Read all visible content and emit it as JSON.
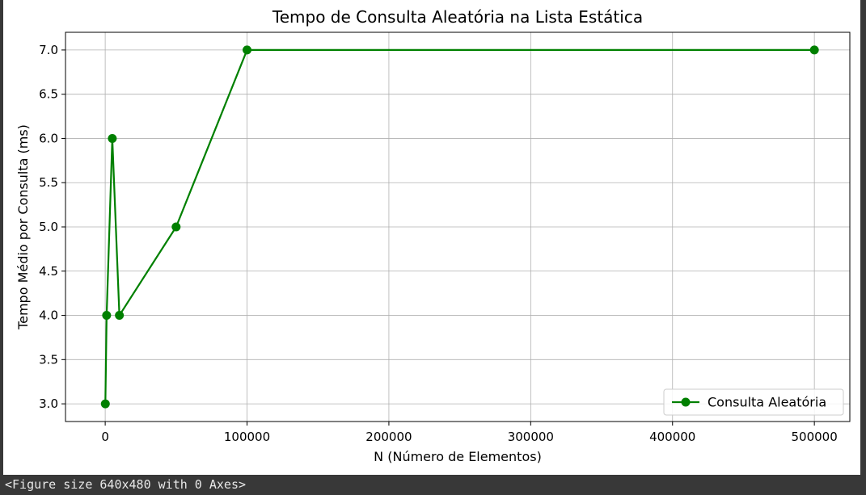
{
  "chart_data": {
    "type": "line",
    "title": "Tempo de Consulta Aleatória na Lista Estática",
    "xlabel": "N (Número de Elementos)",
    "ylabel": "Tempo Médio por Consulta (ms)",
    "xlim": [
      -28000,
      525000
    ],
    "ylim": [
      2.8,
      7.2
    ],
    "x_ticks": [
      0,
      100000,
      200000,
      300000,
      400000,
      500000
    ],
    "x_tick_labels": [
      "0",
      "100000",
      "200000",
      "300000",
      "400000",
      "500000"
    ],
    "y_ticks": [
      3.0,
      3.5,
      4.0,
      4.5,
      5.0,
      5.5,
      6.0,
      6.5,
      7.0
    ],
    "y_tick_labels": [
      "3.0",
      "3.5",
      "4.0",
      "4.5",
      "5.0",
      "5.5",
      "6.0",
      "6.5",
      "7.0"
    ],
    "grid": true,
    "legend_position": "lower right",
    "series": [
      {
        "name": "Consulta Aleatória",
        "color": "#008000",
        "marker": "circle",
        "x": [
          100,
          1000,
          5000,
          10000,
          50000,
          100000,
          500000
        ],
        "y": [
          3,
          4,
          6,
          4,
          5,
          7,
          7
        ]
      }
    ]
  },
  "output": {
    "text": "<Figure size 640x480 with 0 Axes>"
  }
}
